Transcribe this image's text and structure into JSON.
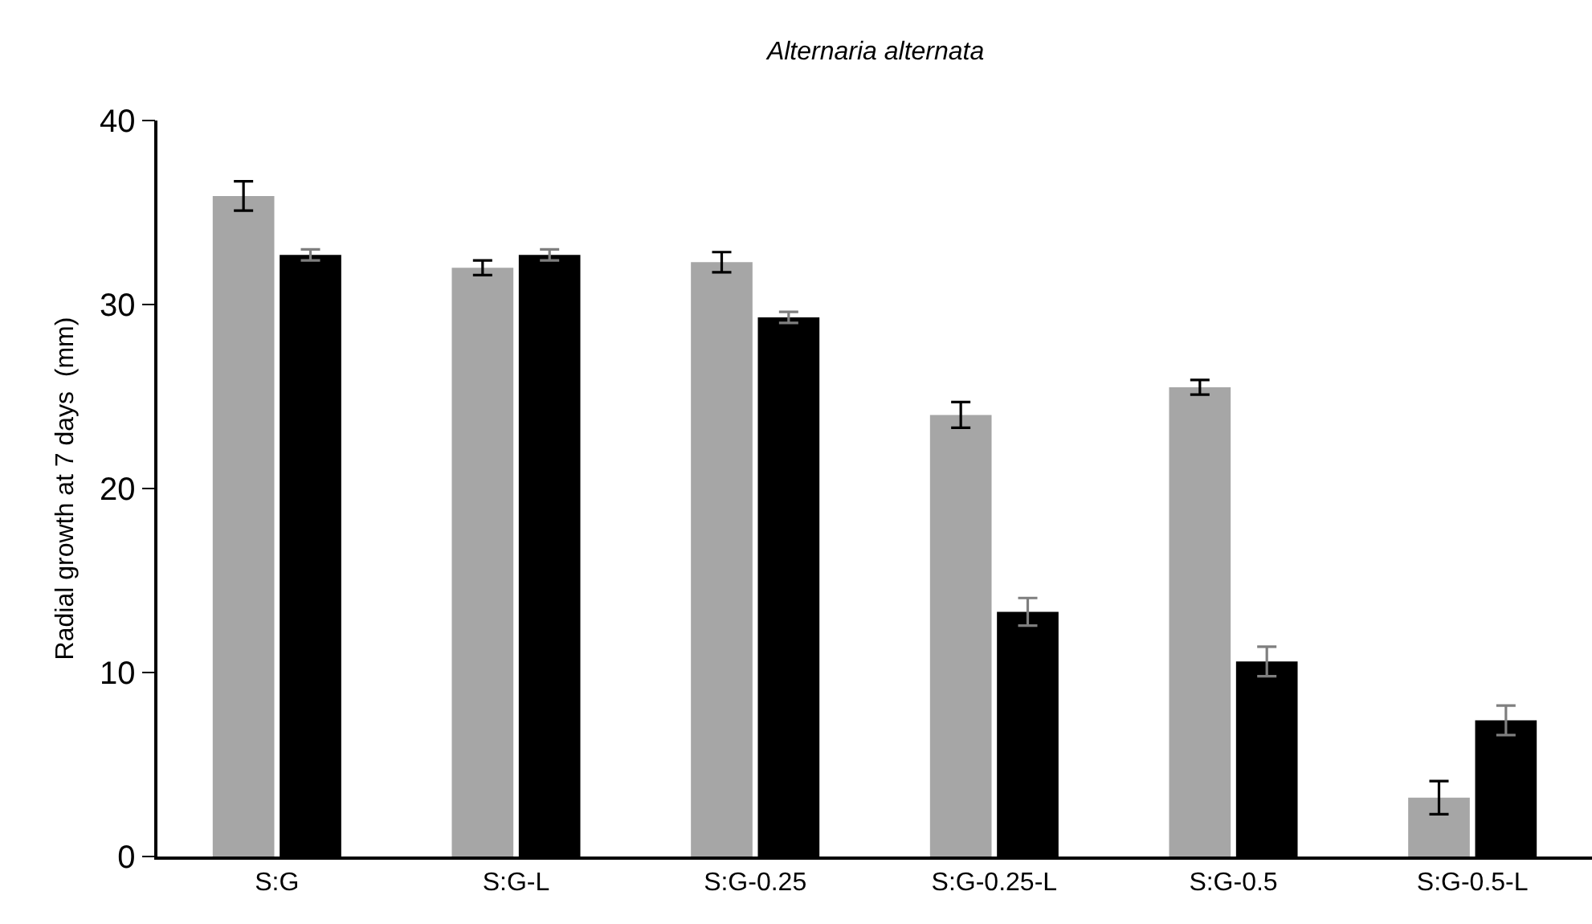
{
  "chart_data": {
    "type": "bar",
    "title": "Alternaria alternata",
    "ylabel": "Radial growth at 7 days  (mm)",
    "categories": [
      "S:G",
      "S:G-L",
      "S:G-0.25",
      "S:G-0.25-L",
      "S:G-0.5",
      "S:G-0.5-L"
    ],
    "series": [
      {
        "color": "#a6a6a6",
        "values": [
          35.9,
          32.0,
          32.3,
          24.0,
          25.5,
          3.2
        ],
        "errors": [
          0.8,
          0.4,
          0.55,
          0.7,
          0.4,
          0.9
        ]
      },
      {
        "color": "#000000",
        "values": [
          32.7,
          32.7,
          29.3,
          13.3,
          10.6,
          7.4
        ],
        "errors": [
          0.3,
          0.3,
          0.3,
          0.75,
          0.8,
          0.8
        ]
      }
    ],
    "ylim": [
      0,
      40
    ],
    "yticks": [
      0,
      10,
      20,
      30,
      40
    ]
  }
}
